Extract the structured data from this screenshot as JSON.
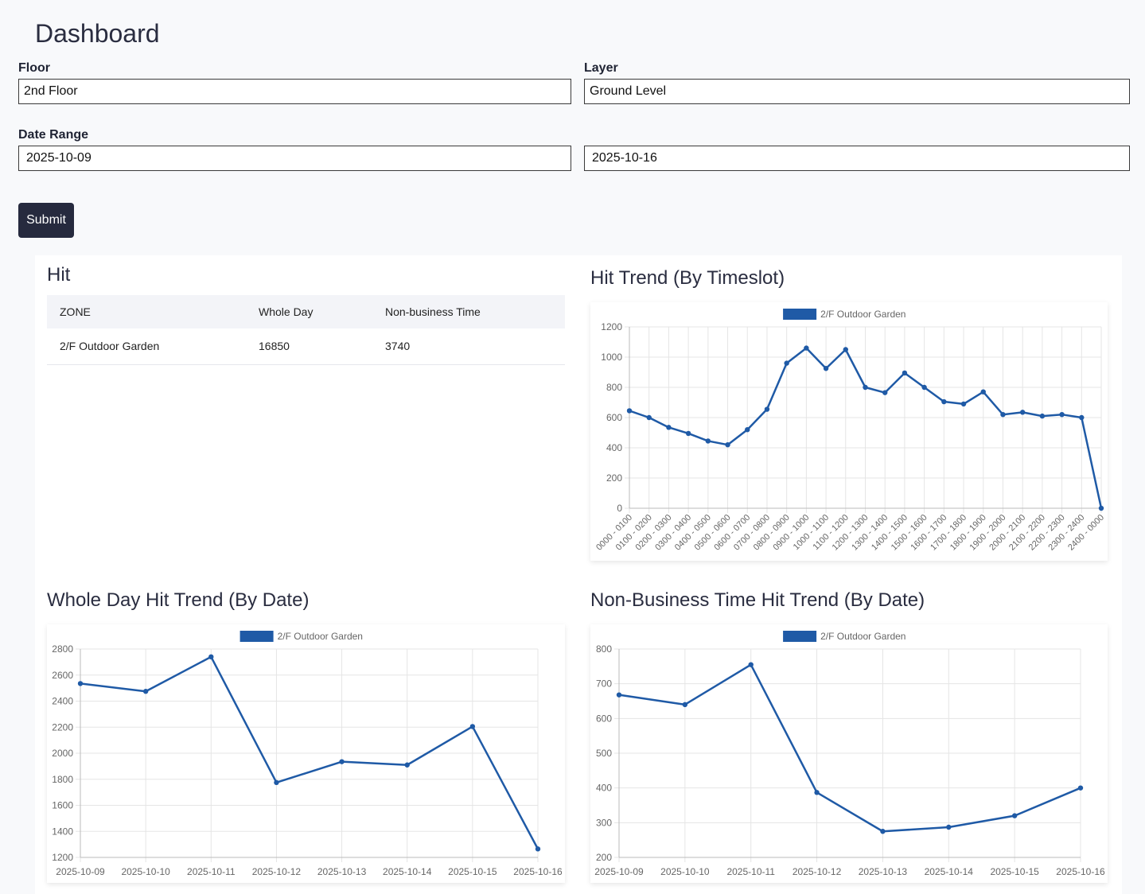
{
  "header": {
    "title": "Dashboard"
  },
  "form": {
    "floor_label": "Floor",
    "floor_value": "2nd Floor",
    "layer_label": "Layer",
    "layer_value": "Ground Level",
    "date_range_label": "Date Range",
    "start_date": "2025-10-09",
    "end_date": "2025-10-16",
    "submit_label": "Submit"
  },
  "hit": {
    "title": "Hit",
    "columns": [
      "ZONE",
      "Whole Day",
      "Non-business Time"
    ],
    "rows": [
      [
        "2/F Outdoor Garden",
        "16850",
        "3740"
      ]
    ]
  },
  "colors": {
    "series": "#1f5aa6",
    "grid": "#e5e5e5"
  },
  "chart_data": [
    {
      "type": "line",
      "title": "Hit Trend (By Timeslot)",
      "xlabel": "",
      "ylabel": "",
      "categories": [
        "0000 - 0100",
        "0100 - 0200",
        "0200 - 0300",
        "0300 - 0400",
        "0400 - 0500",
        "0500 - 0600",
        "0600 - 0700",
        "0700 - 0800",
        "0800 - 0900",
        "0900 - 1000",
        "1000 - 1100",
        "1100 - 1200",
        "1200 - 1300",
        "1300 - 1400",
        "1400 - 1500",
        "1500 - 1600",
        "1600 - 1700",
        "1700 - 1800",
        "1800 - 1900",
        "1900 - 2000",
        "2000 - 2100",
        "2100 - 2200",
        "2200 - 2300",
        "2300 - 2400",
        "2400 - 0000"
      ],
      "series": [
        {
          "name": "2/F Outdoor Garden",
          "values": [
            645,
            600,
            535,
            495,
            445,
            420,
            520,
            655,
            960,
            1060,
            925,
            1050,
            800,
            765,
            895,
            800,
            705,
            690,
            770,
            620,
            635,
            610,
            620,
            600,
            0
          ]
        }
      ],
      "yticks": [
        "0",
        "200",
        "400",
        "600",
        "800",
        "1000",
        "1200"
      ],
      "ylim": [
        0,
        1200
      ],
      "grid": true,
      "legend": "top-center"
    },
    {
      "type": "line",
      "title": "Whole Day Hit Trend (By Date)",
      "xlabel": "",
      "ylabel": "",
      "categories": [
        "2025-10-09",
        "2025-10-10",
        "2025-10-11",
        "2025-10-12",
        "2025-10-13",
        "2025-10-14",
        "2025-10-15",
        "2025-10-16"
      ],
      "series": [
        {
          "name": "2/F Outdoor Garden",
          "values": [
            2535,
            2475,
            2740,
            1775,
            1935,
            1910,
            2205,
            1265
          ]
        }
      ],
      "yticks": [
        "1200",
        "1400",
        "1600",
        "1800",
        "2000",
        "2200",
        "2400",
        "2600",
        "2800"
      ],
      "ylim": [
        1200,
        2800
      ],
      "grid": true,
      "legend": "top-center"
    },
    {
      "type": "line",
      "title": "Non-Business Time Hit Trend (By Date)",
      "xlabel": "",
      "ylabel": "",
      "categories": [
        "2025-10-09",
        "2025-10-10",
        "2025-10-11",
        "2025-10-12",
        "2025-10-13",
        "2025-10-14",
        "2025-10-15",
        "2025-10-16"
      ],
      "series": [
        {
          "name": "2/F Outdoor Garden",
          "values": [
            668,
            640,
            755,
            387,
            275,
            287,
            320,
            400
          ]
        }
      ],
      "yticks": [
        "200",
        "300",
        "400",
        "500",
        "600",
        "700",
        "800"
      ],
      "ylim": [
        200,
        800
      ],
      "grid": true,
      "legend": "top-center"
    }
  ]
}
